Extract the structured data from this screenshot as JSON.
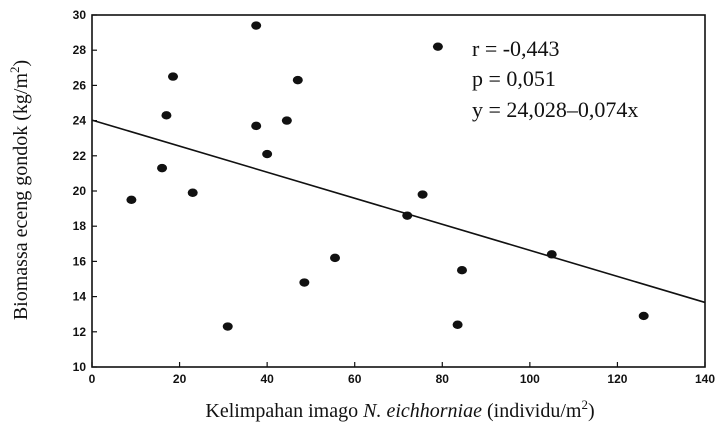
{
  "chart_data": {
    "type": "scatter",
    "title": "",
    "xlabel": {
      "prefix": "Kelimpahan imago ",
      "italic": "N. eichhorniae",
      "suffix_before_sup": " (individu/m",
      "sup": "2",
      "suffix_after_sup": ")"
    },
    "ylabel": {
      "prefix": "Biomassa eceng gondok (kg/m",
      "sup": "2",
      "suffix": ")"
    },
    "xlim": [
      0,
      140
    ],
    "ylim": [
      10,
      30
    ],
    "xticks": [
      "0",
      "20",
      "40",
      "60",
      "80",
      "100",
      "120",
      "140"
    ],
    "yticks": [
      "10",
      "12",
      "14",
      "16",
      "18",
      "20",
      "22",
      "24",
      "26",
      "28",
      "30"
    ],
    "grid": false,
    "legend": "none",
    "points": [
      {
        "x": 9,
        "y": 19.5
      },
      {
        "x": 16,
        "y": 21.3
      },
      {
        "x": 17,
        "y": 24.3
      },
      {
        "x": 18.5,
        "y": 26.5
      },
      {
        "x": 23,
        "y": 19.9
      },
      {
        "x": 31,
        "y": 12.3
      },
      {
        "x": 37.5,
        "y": 29.4
      },
      {
        "x": 37.5,
        "y": 23.7
      },
      {
        "x": 40,
        "y": 22.1
      },
      {
        "x": 44.5,
        "y": 24.0
      },
      {
        "x": 47,
        "y": 26.3
      },
      {
        "x": 48.5,
        "y": 14.8
      },
      {
        "x": 55.5,
        "y": 16.2
      },
      {
        "x": 72,
        "y": 18.6
      },
      {
        "x": 75.5,
        "y": 19.8
      },
      {
        "x": 79,
        "y": 28.2
      },
      {
        "x": 83.5,
        "y": 12.4
      },
      {
        "x": 84.5,
        "y": 15.5
      },
      {
        "x": 105,
        "y": 16.4
      },
      {
        "x": 126,
        "y": 12.9
      }
    ],
    "regression": {
      "intercept": 24.028,
      "slope": -0.074
    },
    "annotations": [
      "r = -0,443",
      "p = 0,051",
      "y = 24,028–0,074x"
    ],
    "colors": {
      "points": "#111111",
      "line": "#111111",
      "axis": "#111111"
    }
  }
}
